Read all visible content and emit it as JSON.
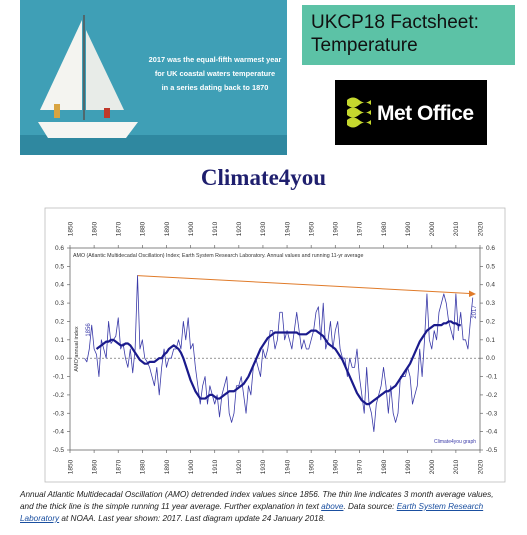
{
  "banner": {
    "lines": [
      "2017 was the equal-fifth warmest year",
      "for UK coastal waters temperature",
      "in a series dating back to 1870"
    ]
  },
  "factsheet": {
    "lines": [
      "UKCP18 Factsheet:",
      "Temperature"
    ]
  },
  "logo": {
    "text": "Met Office"
  },
  "site_title": "Climate4you",
  "chart_data": {
    "type": "line",
    "title": "AMO (Atlantic Multidecadal Oscillation) Index; Earth System Research Laboratory. Annual values and running 11-yr average",
    "y_label": "AMO annual index",
    "annotations": [
      "1856",
      "2017",
      "Climate4you graph"
    ],
    "x": [
      1856,
      1857,
      1858,
      1859,
      1860,
      1861,
      1862,
      1863,
      1864,
      1865,
      1866,
      1867,
      1868,
      1869,
      1870,
      1871,
      1872,
      1873,
      1874,
      1875,
      1876,
      1877,
      1878,
      1879,
      1880,
      1881,
      1882,
      1883,
      1884,
      1885,
      1886,
      1887,
      1888,
      1889,
      1890,
      1891,
      1892,
      1893,
      1894,
      1895,
      1896,
      1897,
      1898,
      1899,
      1900,
      1901,
      1902,
      1903,
      1904,
      1905,
      1906,
      1907,
      1908,
      1909,
      1910,
      1911,
      1912,
      1913,
      1914,
      1915,
      1916,
      1917,
      1918,
      1919,
      1920,
      1921,
      1922,
      1923,
      1924,
      1925,
      1926,
      1927,
      1928,
      1929,
      1930,
      1931,
      1932,
      1933,
      1934,
      1935,
      1936,
      1937,
      1938,
      1939,
      1940,
      1941,
      1942,
      1943,
      1944,
      1945,
      1946,
      1947,
      1948,
      1949,
      1950,
      1951,
      1952,
      1953,
      1954,
      1955,
      1956,
      1957,
      1958,
      1959,
      1960,
      1961,
      1962,
      1963,
      1964,
      1965,
      1966,
      1967,
      1968,
      1969,
      1970,
      1971,
      1972,
      1973,
      1974,
      1975,
      1976,
      1977,
      1978,
      1979,
      1980,
      1981,
      1982,
      1983,
      1984,
      1985,
      1986,
      1987,
      1988,
      1989,
      1990,
      1991,
      1992,
      1993,
      1994,
      1995,
      1996,
      1997,
      1998,
      1999,
      2000,
      2001,
      2002,
      2003,
      2004,
      2005,
      2006,
      2007,
      2008,
      2009,
      2010,
      2011,
      2012,
      2013,
      2014,
      2015,
      2016,
      2017
    ],
    "series": [
      {
        "color": "#3a3aa8",
        "line_width": 0.8,
        "values": [
          0,
          -0.02,
          0.05,
          0.18,
          0.05,
          0.02,
          -0.1,
          0.1,
          0.05,
          0,
          0.2,
          0.08,
          0.1,
          0.12,
          0.22,
          0.05,
          0.08,
          0,
          -0.05,
          0.05,
          -0.08,
          0.05,
          0.45,
          0.05,
          0.1,
          0,
          -0.02,
          -0.05,
          -0.1,
          -0.15,
          -0.05,
          -0.2,
          -0.05,
          0.05,
          -0.05,
          0,
          0,
          0.05,
          0.05,
          0.1,
          0.05,
          0.2,
          0.1,
          0.22,
          0.05,
          0.08,
          -0.05,
          -0.15,
          -0.25,
          -0.15,
          -0.1,
          -0.25,
          -0.15,
          -0.2,
          -0.25,
          -0.2,
          -0.32,
          -0.2,
          -0.15,
          -0.1,
          -0.3,
          -0.35,
          -0.3,
          -0.15,
          -0.15,
          -0.1,
          -0.2,
          -0.3,
          -0.15,
          -0.2,
          -0.05,
          0,
          -0.05,
          -0.1,
          0.05,
          0,
          0.05,
          0.15,
          0.15,
          0.05,
          0.1,
          0.25,
          0.25,
          0.1,
          0.15,
          0.1,
          0.05,
          0.15,
          0.25,
          0.15,
          0.05,
          0.1,
          0.05,
          0.05,
          0.1,
          0.15,
          0.25,
          0.28,
          0.1,
          0.3,
          0.05,
          0.1,
          0.2,
          0.05,
          0.15,
          0.2,
          0.05,
          0,
          0,
          -0.1,
          0,
          -0.05,
          -0.05,
          0.05,
          -0.1,
          -0.2,
          -0.3,
          -0.05,
          -0.25,
          -0.3,
          -0.4,
          -0.25,
          -0.2,
          -0.15,
          -0.05,
          -0.15,
          -0.3,
          -0.15,
          -0.3,
          -0.35,
          -0.3,
          -0.1,
          -0.1,
          -0.1,
          -0.05,
          -0.1,
          -0.25,
          -0.2,
          -0.15,
          0.05,
          -0.1,
          0.1,
          0.35,
          0.1,
          0.05,
          0.15,
          0.1,
          0.25,
          0.3,
          0.35,
          0.3,
          0.2,
          0.15,
          0.1,
          0.35,
          0.15,
          0.25,
          0.1,
          0.1,
          0.05,
          0.2,
          0.33
        ]
      },
      {
        "color": "#1a1a8c",
        "line_width": 2.2,
        "values": [
          null,
          null,
          null,
          null,
          null,
          0.05,
          0.06,
          0.07,
          0.08,
          0.09,
          0.09,
          0.1,
          0.1,
          0.09,
          0.08,
          0.07,
          0.07,
          0.08,
          0.08,
          0.07,
          0.05,
          0.03,
          0.01,
          -0.01,
          -0.02,
          -0.03,
          -0.03,
          -0.02,
          -0.02,
          -0.02,
          -0.01,
          0,
          0,
          0.02,
          0.03,
          0.05,
          0.06,
          0.07,
          0.06,
          0.05,
          0.03,
          0,
          -0.04,
          -0.08,
          -0.12,
          -0.15,
          -0.18,
          -0.2,
          -0.22,
          -0.22,
          -0.22,
          -0.21,
          -0.2,
          -0.2,
          -0.21,
          -0.22,
          -0.22,
          -0.21,
          -0.2,
          -0.19,
          -0.18,
          -0.18,
          -0.18,
          -0.17,
          -0.16,
          -0.15,
          -0.14,
          -0.12,
          -0.1,
          -0.07,
          -0.04,
          -0.01,
          0.02,
          0.05,
          0.07,
          0.09,
          0.11,
          0.12,
          0.13,
          0.14,
          0.14,
          0.14,
          0.14,
          0.14,
          0.14,
          0.14,
          0.14,
          0.14,
          0.14,
          0.13,
          0.13,
          0.13,
          0.13,
          0.14,
          0.15,
          0.15,
          0.15,
          0.14,
          0.13,
          0.12,
          0.1,
          0.08,
          0.07,
          0.06,
          0.05,
          0.03,
          0.01,
          -0.01,
          -0.04,
          -0.07,
          -0.1,
          -0.13,
          -0.16,
          -0.19,
          -0.21,
          -0.23,
          -0.24,
          -0.25,
          -0.25,
          -0.24,
          -0.23,
          -0.22,
          -0.21,
          -0.2,
          -0.19,
          -0.18,
          -0.18,
          -0.17,
          -0.16,
          -0.15,
          -0.13,
          -0.11,
          -0.09,
          -0.07,
          -0.05,
          -0.03,
          0,
          0.03,
          0.06,
          0.09,
          0.11,
          0.13,
          0.15,
          0.16,
          0.17,
          0.18,
          0.18,
          0.18,
          0.18,
          0.19,
          0.19,
          0.2,
          0.2,
          0.19,
          0.19,
          0.18,
          0.18,
          null,
          null,
          null,
          null,
          null
        ]
      }
    ],
    "xlim": [
      1850,
      2020
    ],
    "xticks": [
      1850,
      1860,
      1870,
      1880,
      1890,
      1900,
      1910,
      1920,
      1930,
      1940,
      1950,
      1960,
      1970,
      1980,
      1990,
      2000,
      2010,
      2020
    ],
    "ylim": [
      -0.5,
      0.6
    ],
    "yticks": [
      -0.5,
      -0.4,
      -0.3,
      -0.2,
      -0.1,
      {
        "value": 0,
        "label": "0.0"
      },
      0.1,
      0.2,
      0.3,
      0.4,
      0.5,
      0.6
    ],
    "zero_line": true
  },
  "caption": {
    "parts": [
      "Annual Atlantic Multidecadal Oscillation (AMO) detrended index values since 1856. The thin line indicates 3 month average values, and the thick line is the simple running 11 year average. Further explanation in text ",
      "above",
      ". Data source: ",
      "Earth System Research Laboratory",
      " at NOAA. Last year shown: 2017. Last diagram update 24 January 2018."
    ]
  }
}
